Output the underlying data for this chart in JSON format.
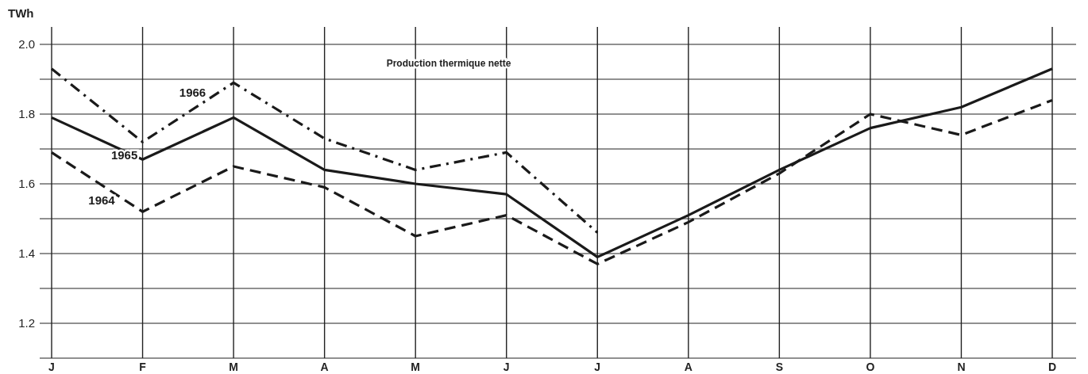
{
  "chart_data": {
    "type": "line",
    "title": "Production thermique nette",
    "ylabel": "TWh",
    "categories": [
      "J",
      "F",
      "M",
      "A",
      "M",
      "J",
      "J",
      "A",
      "S",
      "O",
      "N",
      "D"
    ],
    "series": [
      {
        "name": "1966",
        "color": "#1a1a1a",
        "line_style": "dashdot",
        "values": [
          1.93,
          1.72,
          1.89,
          1.73,
          1.64,
          1.69,
          1.46,
          null,
          null,
          null,
          null,
          null
        ]
      },
      {
        "name": "1965",
        "color": "#1a1a1a",
        "line_style": "solid",
        "values": [
          1.79,
          1.67,
          1.79,
          1.64,
          1.6,
          1.57,
          1.39,
          1.51,
          1.64,
          1.76,
          1.82,
          1.93
        ]
      },
      {
        "name": "1964",
        "color": "#1a1a1a",
        "line_style": "dashed",
        "values": [
          1.69,
          1.52,
          1.65,
          1.59,
          1.45,
          1.51,
          1.37,
          1.49,
          1.63,
          1.8,
          1.74,
          1.84
        ]
      }
    ],
    "ylim": [
      1.1,
      2.05
    ],
    "yticks": [
      {
        "value": 1.1,
        "label": null
      },
      1.2,
      {
        "value": 1.3,
        "label": null
      },
      1.4,
      {
        "value": 1.5,
        "label": null
      },
      1.6,
      {
        "value": 1.7,
        "label": null
      },
      1.8,
      {
        "value": 1.9,
        "label": null
      },
      {
        "value": 2.0,
        "label": "2.0"
      }
    ],
    "grid": true,
    "marker": "none"
  }
}
